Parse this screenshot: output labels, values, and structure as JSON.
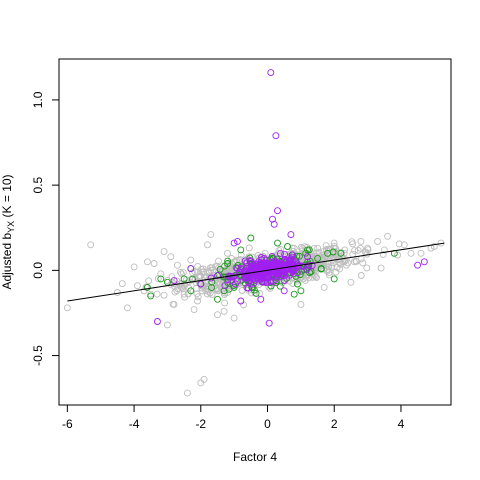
{
  "chart_data": {
    "type": "scatter",
    "title": "",
    "xlabel": "Factor 4",
    "ylabel_main": "Adjusted b",
    "ylabel_sub": "YX",
    "ylabel_rest": " (K = 10)",
    "xlim": [
      -6.25,
      5.5
    ],
    "ylim": [
      -0.79,
      1.24
    ],
    "x_ticks": [
      -6,
      -4,
      -2,
      0,
      2,
      4
    ],
    "x_tick_labels": [
      "-6",
      "-4",
      "-2",
      "0",
      "2",
      "4"
    ],
    "y_ticks": [
      -0.5,
      0.0,
      0.5,
      1.0
    ],
    "y_tick_labels": [
      "-0.5",
      "0.0",
      "0.5",
      "1.0"
    ],
    "grid": false,
    "fit_line": {
      "x": [
        -6.0,
        5.3
      ],
      "y": [
        -0.18,
        0.16
      ]
    },
    "series": [
      {
        "color": "#bebebe",
        "marker": "open-circle",
        "count_dense": 900,
        "points": [
          [
            -6.0,
            -0.22
          ],
          [
            -5.3,
            0.15
          ],
          [
            -4.5,
            -0.13
          ],
          [
            -4.2,
            -0.22
          ],
          [
            -4.0,
            0.02
          ],
          [
            -3.9,
            -0.09
          ],
          [
            -3.7,
            -0.12
          ],
          [
            -3.6,
            0.05
          ],
          [
            -3.5,
            -0.14
          ],
          [
            -3.4,
            0.04
          ],
          [
            -3.2,
            -0.02
          ],
          [
            -3.1,
            0.11
          ],
          [
            -3.0,
            -0.32
          ],
          [
            -3.0,
            -0.06
          ],
          [
            -2.9,
            0.08
          ],
          [
            -2.8,
            -0.2
          ],
          [
            -2.7,
            0.03
          ],
          [
            -2.5,
            -0.14
          ],
          [
            -2.3,
            0.06
          ],
          [
            -2.2,
            -0.23
          ],
          [
            -2.1,
            -0.18
          ],
          [
            -2.0,
            -0.66
          ],
          [
            -1.9,
            -0.64
          ],
          [
            -1.85,
            -0.12
          ],
          [
            -1.8,
            0.15
          ],
          [
            -1.7,
            0.21
          ],
          [
            -1.5,
            -0.26
          ],
          [
            -1.3,
            -0.24
          ],
          [
            -1.2,
            0.1
          ],
          [
            -1.0,
            -0.28
          ],
          [
            -2.4,
            -0.72
          ],
          [
            1.0,
            -0.2
          ],
          [
            1.5,
            0.13
          ],
          [
            2.0,
            0.16
          ],
          [
            2.3,
            0.1
          ],
          [
            2.6,
            0.05
          ],
          [
            2.8,
            0.17
          ],
          [
            3.0,
            0.13
          ],
          [
            3.3,
            0.17
          ],
          [
            3.5,
            0.12
          ],
          [
            3.6,
            0.2
          ],
          [
            3.9,
            0.09
          ],
          [
            4.1,
            0.15
          ],
          [
            4.3,
            0.1
          ],
          [
            4.6,
            0.1
          ],
          [
            4.9,
            0.13
          ],
          [
            5.0,
            0.14
          ],
          [
            5.2,
            0.16
          ],
          [
            1.7,
            -0.1
          ],
          [
            2.5,
            -0.07
          ]
        ]
      },
      {
        "color": "#1a9a1a",
        "marker": "open-circle",
        "count_dense": 150,
        "points": [
          [
            -3.6,
            -0.1
          ],
          [
            -3.5,
            -0.15
          ],
          [
            -3.2,
            -0.05
          ],
          [
            -3.0,
            -0.07
          ],
          [
            -2.5,
            -0.05
          ],
          [
            -2.3,
            0.01
          ],
          [
            -2.0,
            -0.08
          ],
          [
            -1.5,
            -0.17
          ],
          [
            -1.3,
            -0.12
          ],
          [
            -2.3,
            -0.12
          ],
          [
            -1.2,
            0.04
          ],
          [
            -1.0,
            -0.1
          ],
          [
            -0.8,
            0.12
          ],
          [
            -0.5,
            0.19
          ],
          [
            0.3,
            0.16
          ],
          [
            0.6,
            0.14
          ],
          [
            0.9,
            -0.08
          ],
          [
            1.0,
            -0.12
          ],
          [
            1.2,
            0.12
          ],
          [
            1.5,
            0.07
          ],
          [
            1.8,
            0.1
          ],
          [
            2.0,
            -0.05
          ],
          [
            2.2,
            0.1
          ],
          [
            3.8,
            0.1
          ],
          [
            0.8,
            -0.14
          ]
        ]
      },
      {
        "color": "#a020f0",
        "marker": "open-circle",
        "count_dense": 330,
        "points": [
          [
            0.1,
            1.16
          ],
          [
            0.25,
            0.79
          ],
          [
            0.3,
            0.35
          ],
          [
            0.15,
            0.3
          ],
          [
            0.2,
            0.27
          ],
          [
            0.7,
            0.21
          ],
          [
            -0.9,
            0.17
          ],
          [
            -1.0,
            0.16
          ],
          [
            -0.8,
            -0.18
          ],
          [
            -3.3,
            -0.3
          ],
          [
            0.05,
            -0.31
          ],
          [
            -2.8,
            -0.06
          ],
          [
            -2.3,
            0.01
          ],
          [
            -1.5,
            -0.03
          ],
          [
            -2.0,
            -0.08
          ],
          [
            4.5,
            0.03
          ],
          [
            4.7,
            0.05
          ],
          [
            -0.2,
            -0.17
          ],
          [
            1.2,
            0.08
          ],
          [
            0.5,
            -0.12
          ]
        ]
      }
    ]
  }
}
